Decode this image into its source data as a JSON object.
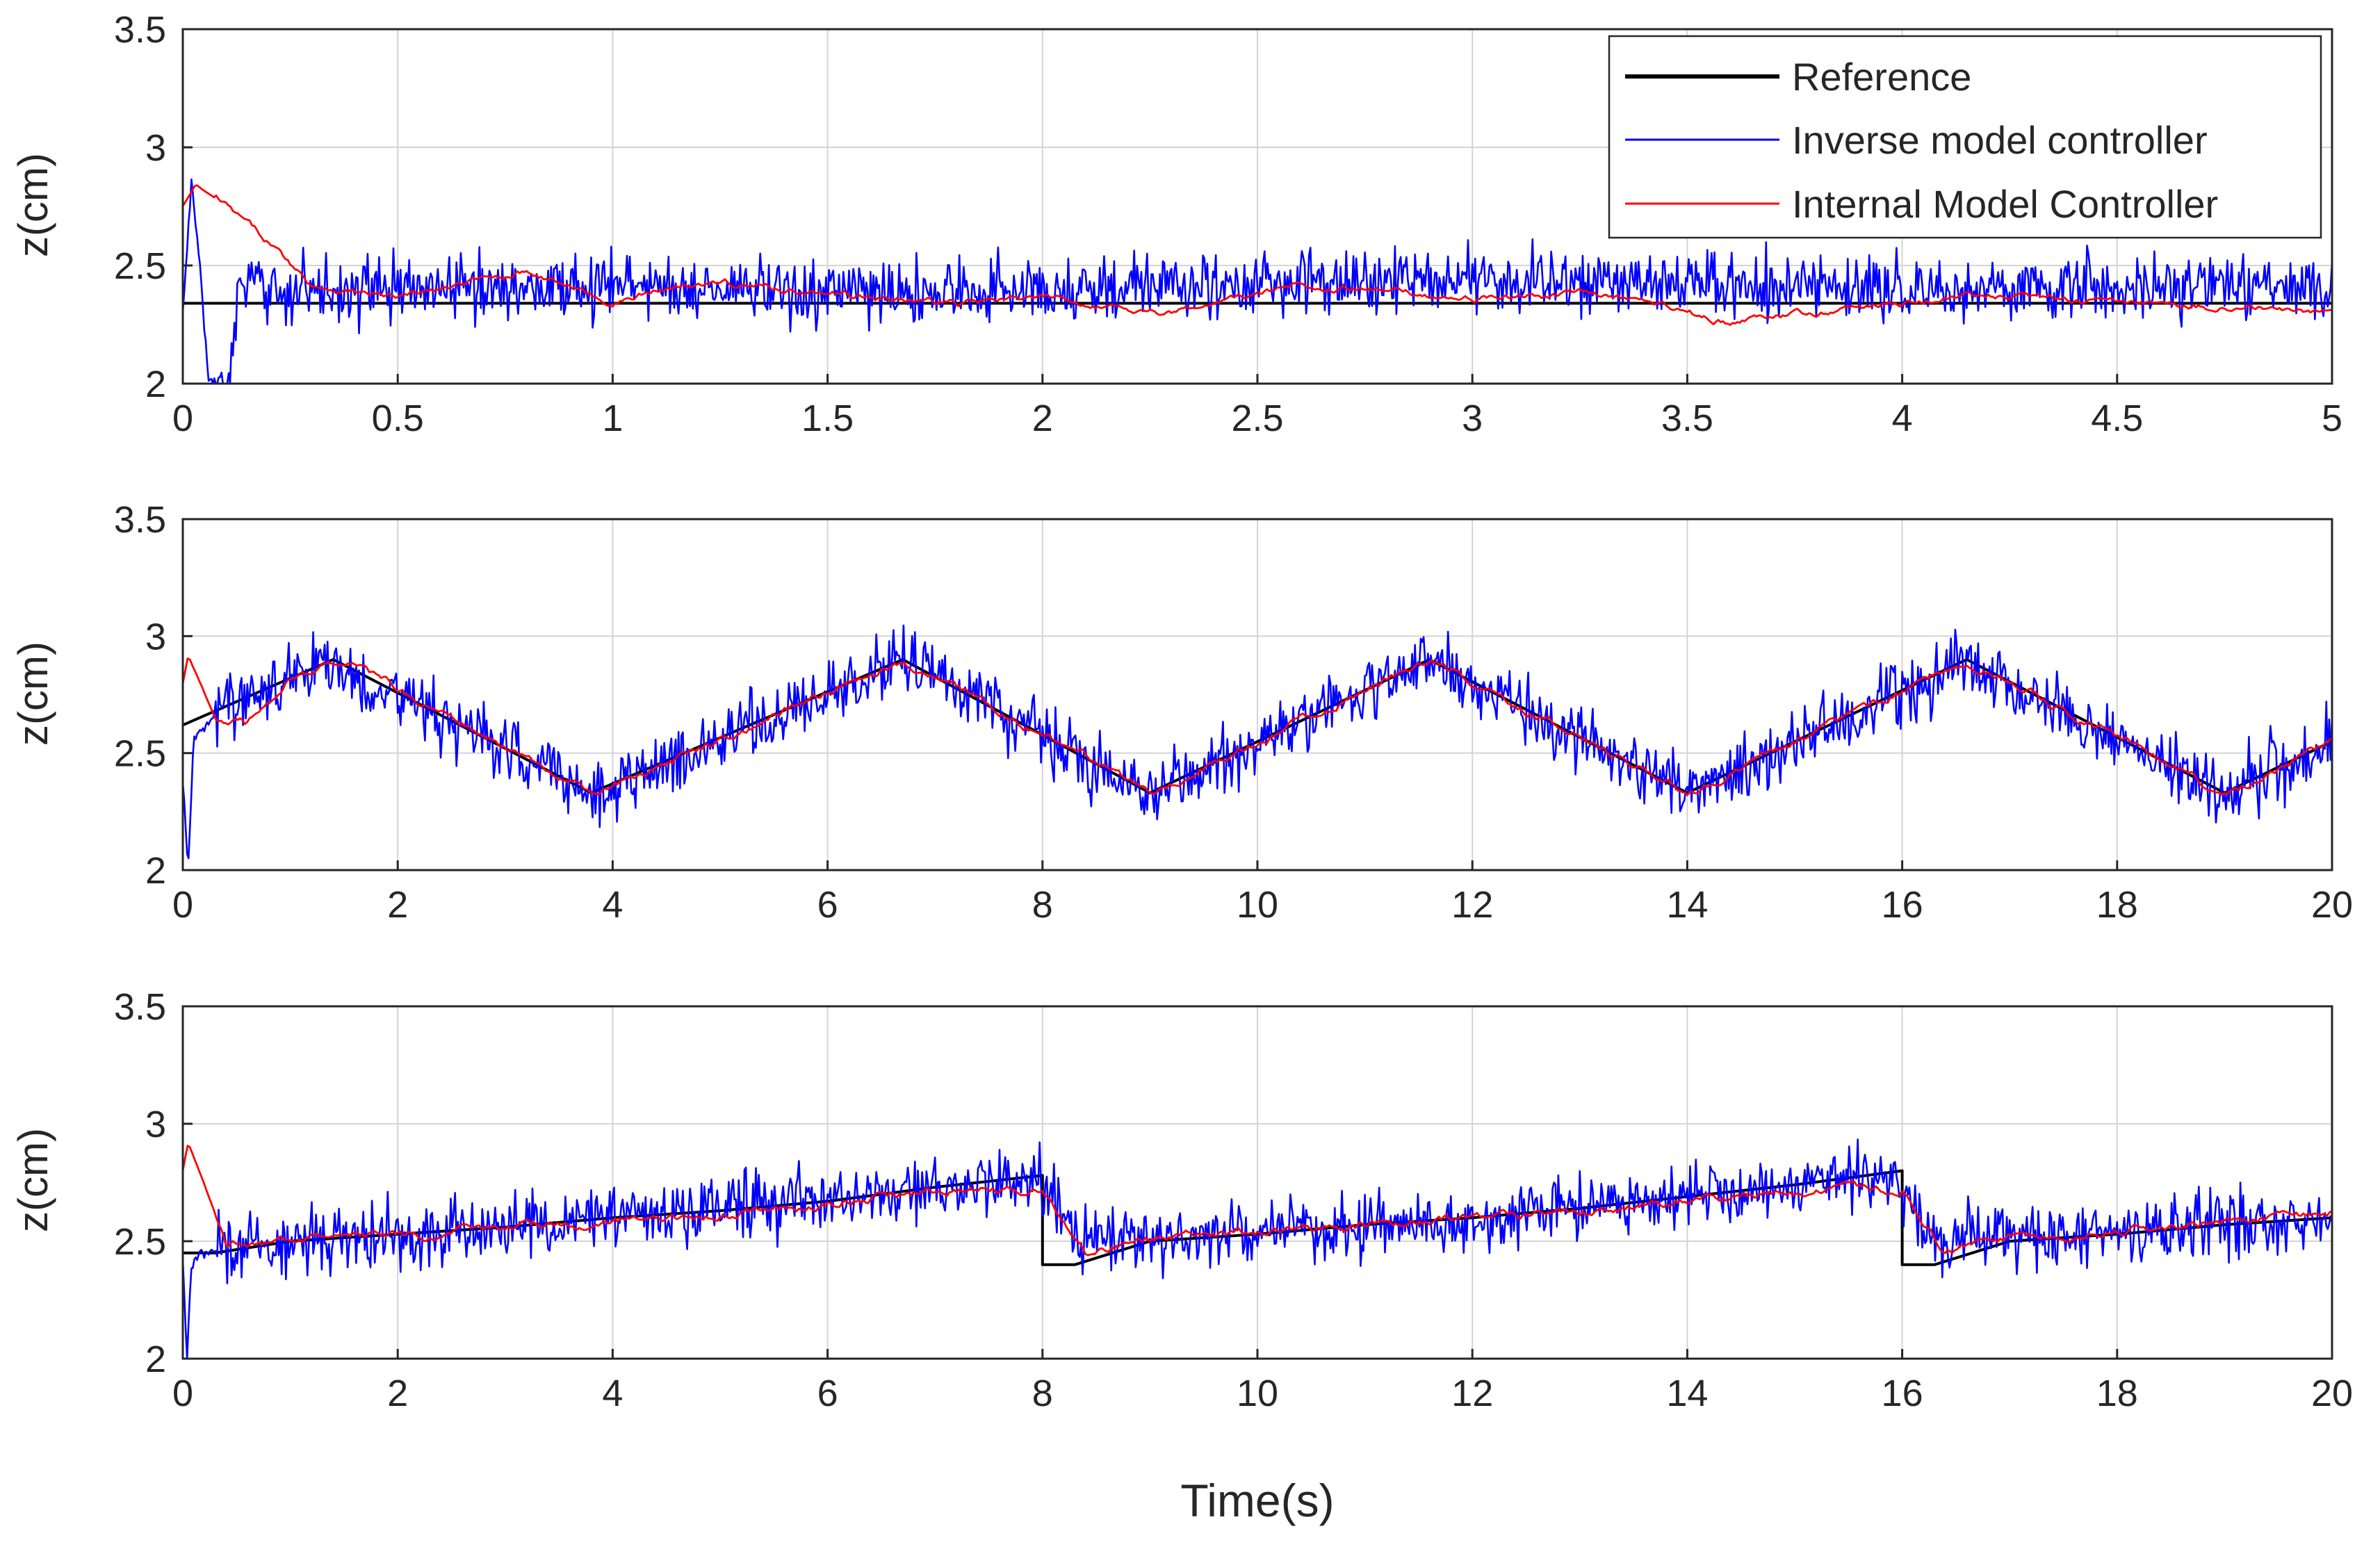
{
  "colors": {
    "reference": "#000000",
    "inverse": "#0000ff",
    "imc": "#ff0000",
    "grid": "#d4d4d4",
    "axis": "#262626"
  },
  "figure": {
    "xlabel": "Time(s)"
  },
  "legend": {
    "entries": [
      {
        "label": "Reference",
        "color": "#000000"
      },
      {
        "label": "Inverse model controller",
        "color": "#0000ff"
      },
      {
        "label": "Internal Model Controller",
        "color": "#ff0000"
      }
    ]
  },
  "chart_data": [
    {
      "type": "line",
      "title": "",
      "xlabel": "",
      "ylabel": "z(cm)",
      "xlim": [
        0,
        5
      ],
      "ylim": [
        2,
        3.5
      ],
      "xticks": [
        0,
        0.5,
        1,
        1.5,
        2,
        2.5,
        3,
        3.5,
        4,
        4.5,
        5
      ],
      "xtick_labels": [
        "0",
        "0.5",
        "1",
        "1.5",
        "2",
        "2.5",
        "3",
        "3.5",
        "4",
        "4.5",
        "5"
      ],
      "yticks": [
        2,
        2.5,
        3,
        3.5
      ],
      "ytick_labels": [
        "2",
        "2.5",
        "3",
        "3.5"
      ],
      "grid": true,
      "legend_position": "top-right",
      "series": [
        {
          "name": "Reference",
          "x": [
            0,
            5
          ],
          "values": [
            2.34,
            2.34
          ]
        },
        {
          "name": "Inverse model controller",
          "x": [
            0,
            0.02,
            0.04,
            0.06,
            0.09,
            0.11,
            0.13,
            0.5,
            1,
            1.5,
            2,
            2.5,
            3,
            3.5,
            4,
            4.5,
            5
          ],
          "values": [
            2.3,
            2.85,
            2.5,
            2.0,
            2.0,
            2.0,
            2.4,
            2.4,
            2.42,
            2.38,
            2.4,
            2.42,
            2.44,
            2.42,
            2.4,
            2.4,
            2.42
          ],
          "noise_amplitude": 0.16
        },
        {
          "name": "Internal Model Controller",
          "x": [
            0,
            0.03,
            0.1,
            0.2,
            0.3,
            0.5,
            0.8,
            1.0,
            1.2,
            1.5,
            1.8,
            2.0,
            2.3,
            2.6,
            3.0,
            3.3,
            3.6,
            3.8,
            4.2,
            4.5,
            4.8,
            5
          ],
          "values": [
            2.75,
            2.84,
            2.75,
            2.6,
            2.42,
            2.36,
            2.48,
            2.34,
            2.44,
            2.38,
            2.34,
            2.36,
            2.3,
            2.42,
            2.36,
            2.38,
            2.26,
            2.3,
            2.38,
            2.34,
            2.32,
            2.3
          ],
          "noise_amplitude": 0.04
        }
      ]
    },
    {
      "type": "line",
      "title": "",
      "xlabel": "",
      "ylabel": "z(cm)",
      "xlim": [
        0,
        20
      ],
      "ylim": [
        2,
        3.5
      ],
      "xticks": [
        0,
        2,
        4,
        6,
        8,
        10,
        12,
        14,
        16,
        18,
        20
      ],
      "xtick_labels": [
        "0",
        "2",
        "4",
        "6",
        "8",
        "10",
        "12",
        "14",
        "16",
        "18",
        "20"
      ],
      "yticks": [
        2,
        2.5,
        3,
        3.5
      ],
      "ytick_labels": [
        "2",
        "2.5",
        "3",
        "3.5"
      ],
      "grid": true,
      "series": [
        {
          "name": "Reference",
          "x": [
            0,
            1.4,
            3.8,
            6.7,
            9.0,
            11.6,
            14.0,
            16.6,
            19.0,
            20
          ],
          "values": [
            2.62,
            2.9,
            2.33,
            2.9,
            2.33,
            2.9,
            2.33,
            2.9,
            2.33,
            2.55
          ]
        },
        {
          "name": "Inverse model controller",
          "x": [
            0,
            0.05,
            0.1,
            0.2,
            0.4,
            1.3,
            3.8,
            6.7,
            9.0,
            11.6,
            14.0,
            16.6,
            19.0,
            20
          ],
          "values": [
            2.4,
            2.0,
            2.55,
            2.62,
            2.7,
            2.9,
            2.33,
            2.9,
            2.33,
            2.9,
            2.33,
            2.9,
            2.33,
            2.55
          ],
          "noise_amplitude": 0.17
        },
        {
          "name": "Internal Model Controller",
          "x": [
            0,
            0.05,
            0.3,
            0.6,
            1.0,
            1.5,
            3.8,
            6.7,
            9.0,
            11.6,
            14.0,
            16.6,
            19.0,
            20
          ],
          "values": [
            2.8,
            2.92,
            2.65,
            2.62,
            2.82,
            2.9,
            2.32,
            2.9,
            2.33,
            2.9,
            2.33,
            2.9,
            2.33,
            2.55
          ],
          "noise_amplitude": 0.05
        }
      ]
    },
    {
      "type": "line",
      "title": "",
      "xlabel": "Time(s)",
      "ylabel": "z(cm)",
      "xlim": [
        0,
        20
      ],
      "ylim": [
        2,
        3.5
      ],
      "xticks": [
        0,
        2,
        4,
        6,
        8,
        10,
        12,
        14,
        16,
        18,
        20
      ],
      "xtick_labels": [
        "0",
        "2",
        "4",
        "6",
        "8",
        "10",
        "12",
        "14",
        "16",
        "18",
        "20"
      ],
      "yticks": [
        2,
        2.5,
        3,
        3.5
      ],
      "ytick_labels": [
        "2",
        "2.5",
        "3",
        "3.5"
      ],
      "grid": true,
      "series": [
        {
          "name": "Reference",
          "x": [
            0,
            0.3,
            1.0,
            2.0,
            3.0,
            4.0,
            5.0,
            6.0,
            7.0,
            8.0,
            8.0,
            8.3,
            9.0,
            10,
            11,
            12,
            13,
            14,
            15,
            16,
            16.0,
            16.3,
            17,
            18,
            19,
            20
          ],
          "values": [
            2.45,
            2.45,
            2.5,
            2.53,
            2.56,
            2.6,
            2.63,
            2.67,
            2.73,
            2.78,
            2.4,
            2.4,
            2.5,
            2.53,
            2.57,
            2.6,
            2.64,
            2.69,
            2.74,
            2.8,
            2.4,
            2.4,
            2.5,
            2.53,
            2.57,
            2.6
          ]
        },
        {
          "name": "Inverse model controller",
          "x": [
            0,
            0.04,
            0.08,
            0.15,
            1.0,
            2.0,
            3.0,
            4.0,
            5.0,
            6.0,
            7.0,
            7.95,
            8.3,
            9.0,
            10,
            11,
            12,
            13,
            14,
            15,
            15.95,
            16.3,
            17,
            18,
            19,
            20
          ],
          "values": [
            2.4,
            2.0,
            2.4,
            2.45,
            2.5,
            2.53,
            2.56,
            2.6,
            2.64,
            2.68,
            2.73,
            2.78,
            2.5,
            2.52,
            2.54,
            2.57,
            2.6,
            2.64,
            2.69,
            2.74,
            2.78,
            2.5,
            2.52,
            2.54,
            2.57,
            2.6
          ],
          "noise_amplitude": 0.16
        },
        {
          "name": "Internal Model Controller",
          "x": [
            0,
            0.05,
            0.4,
            1.0,
            2.0,
            3.0,
            4.0,
            5.0,
            6.0,
            7.0,
            8.0,
            8.4,
            9.0,
            10,
            11,
            12,
            13,
            14,
            15,
            16.0,
            16.4,
            17,
            18,
            19,
            20
          ],
          "values": [
            2.8,
            2.92,
            2.5,
            2.5,
            2.52,
            2.55,
            2.58,
            2.62,
            2.66,
            2.72,
            2.72,
            2.45,
            2.52,
            2.54,
            2.57,
            2.6,
            2.63,
            2.67,
            2.71,
            2.72,
            2.45,
            2.52,
            2.54,
            2.58,
            2.62
          ],
          "noise_amplitude": 0.05
        }
      ]
    }
  ]
}
